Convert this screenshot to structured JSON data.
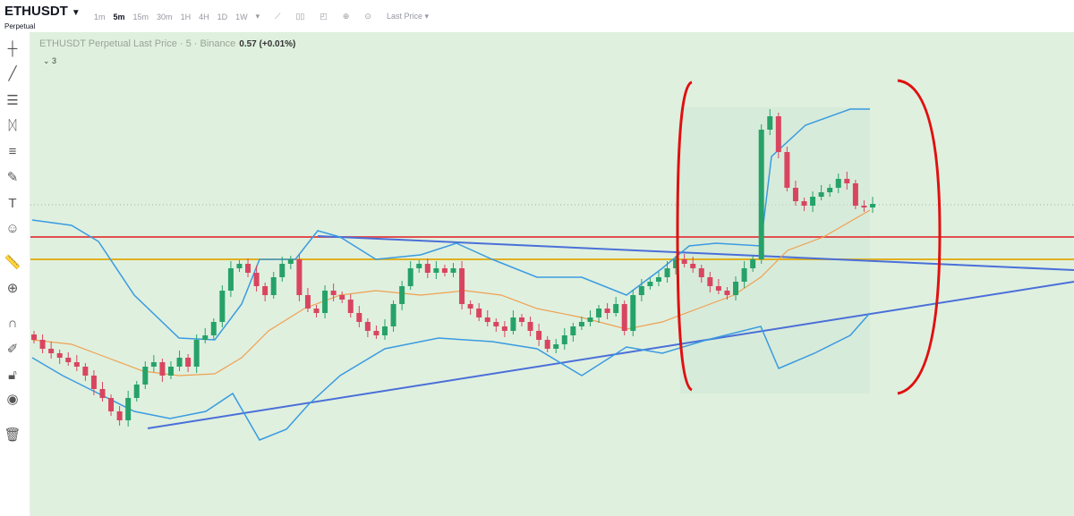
{
  "header": {
    "symbol": "ETHUSDT",
    "contract": "Perpetual",
    "timeframes": [
      "1m",
      "5m",
      "15m",
      "30m",
      "1H",
      "4H",
      "1D",
      "1W"
    ],
    "active_timeframe": "5m",
    "price_type": "Last Price"
  },
  "toolbar_icons": [
    "crosshair-icon",
    "trend-line-icon",
    "horizontal-lines-icon",
    "pattern-icon",
    "fib-icon",
    "brush-icon",
    "text-icon",
    "emoji-icon",
    "ruler-icon",
    "zoom-in-icon",
    "magnet-icon",
    "lock-drawing-icon",
    "unlock-icon",
    "eye-icon",
    "trash-icon"
  ],
  "chart": {
    "legend_title": "ETHUSDT Perpetual Last Price · 5 · Binance",
    "legend_value": "0.57 (+0.01%)",
    "indicators_collapsed": "3"
  },
  "colors": {
    "bg": "#dff0df",
    "up": "#26a269",
    "down": "#d9455f",
    "bands": "#3a9be0",
    "basis": "#f0a050",
    "resistance": "#e05050",
    "support": "#e0b020",
    "trend": "#4a6fd8",
    "highlight": "#e01010"
  },
  "chart_data": {
    "type": "candlestick",
    "closes": [
      197,
      187,
      182,
      177,
      172,
      167,
      157,
      142,
      132,
      117,
      107,
      132,
      147,
      167,
      172,
      157,
      167,
      177,
      167,
      197,
      202,
      217,
      252,
      277,
      282,
      272,
      257,
      247,
      267,
      282,
      287,
      247,
      232,
      227,
      252,
      247,
      242,
      227,
      217,
      207,
      202,
      212,
      237,
      257,
      277,
      282,
      272,
      277,
      272,
      277,
      237,
      232,
      222,
      217,
      212,
      207,
      222,
      217,
      207,
      197,
      187,
      192,
      202,
      212,
      217,
      222,
      232,
      227,
      237,
      207,
      247,
      257,
      262,
      267,
      277,
      287,
      282,
      277,
      267,
      257,
      252,
      247,
      262,
      277,
      287,
      432,
      447,
      407,
      367,
      352,
      347,
      357,
      362,
      367,
      377,
      372,
      347,
      345,
      349
    ]
  }
}
